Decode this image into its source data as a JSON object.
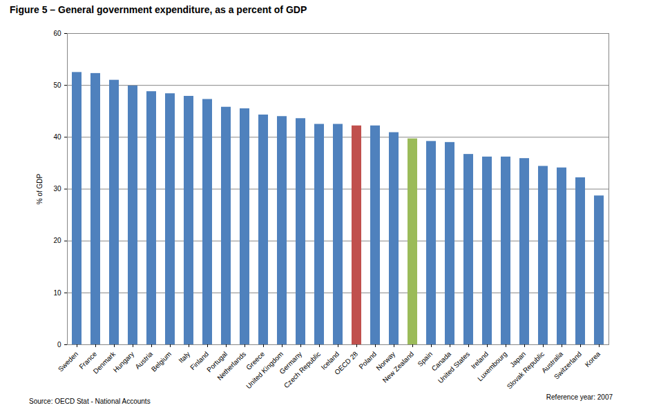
{
  "chart_data": {
    "type": "bar",
    "title": "Figure 5 – General government expenditure, as a percent of GDP",
    "y_label": "% of GDP",
    "source": "Source: OECD Stat - National Accounts",
    "note": "Reference year: 2007",
    "categories": [
      "Sweden",
      "France",
      "Denmark",
      "Hungary",
      "Austria",
      "Belgium",
      "Italy",
      "Finland",
      "Portugal",
      "Netherlands",
      "Greece",
      "United Kingdom",
      "Germany",
      "Czech Republic",
      "Iceland",
      "OECD 28",
      "Poland",
      "Norway",
      "New Zealand",
      "Spain",
      "Canada",
      "United States",
      "Ireland",
      "Luxembourg",
      "Japan",
      "Slovak Republic",
      "Australia",
      "Switzerland",
      "Korea"
    ],
    "values": [
      52.5,
      52.3,
      51.0,
      49.9,
      48.8,
      48.4,
      47.9,
      47.3,
      45.8,
      45.5,
      44.3,
      44.0,
      43.6,
      42.5,
      42.5,
      42.2,
      42.2,
      40.9,
      39.7,
      39.2,
      39.0,
      36.7,
      36.2,
      36.2,
      35.9,
      34.4,
      34.1,
      32.2,
      28.7
    ],
    "colors": [
      "#4f81bd",
      "#4f81bd",
      "#4f81bd",
      "#4f81bd",
      "#4f81bd",
      "#4f81bd",
      "#4f81bd",
      "#4f81bd",
      "#4f81bd",
      "#4f81bd",
      "#4f81bd",
      "#4f81bd",
      "#4f81bd",
      "#4f81bd",
      "#4f81bd",
      "#c0504d",
      "#4f81bd",
      "#4f81bd",
      "#9bbb59",
      "#4f81bd",
      "#4f81bd",
      "#4f81bd",
      "#4f81bd",
      "#4f81bd",
      "#4f81bd",
      "#4f81bd",
      "#4f81bd",
      "#4f81bd",
      "#4f81bd"
    ],
    "ylim": [
      0,
      60
    ],
    "yticks": [
      0,
      10,
      20,
      30,
      40,
      50,
      60
    ],
    "grid": true
  }
}
